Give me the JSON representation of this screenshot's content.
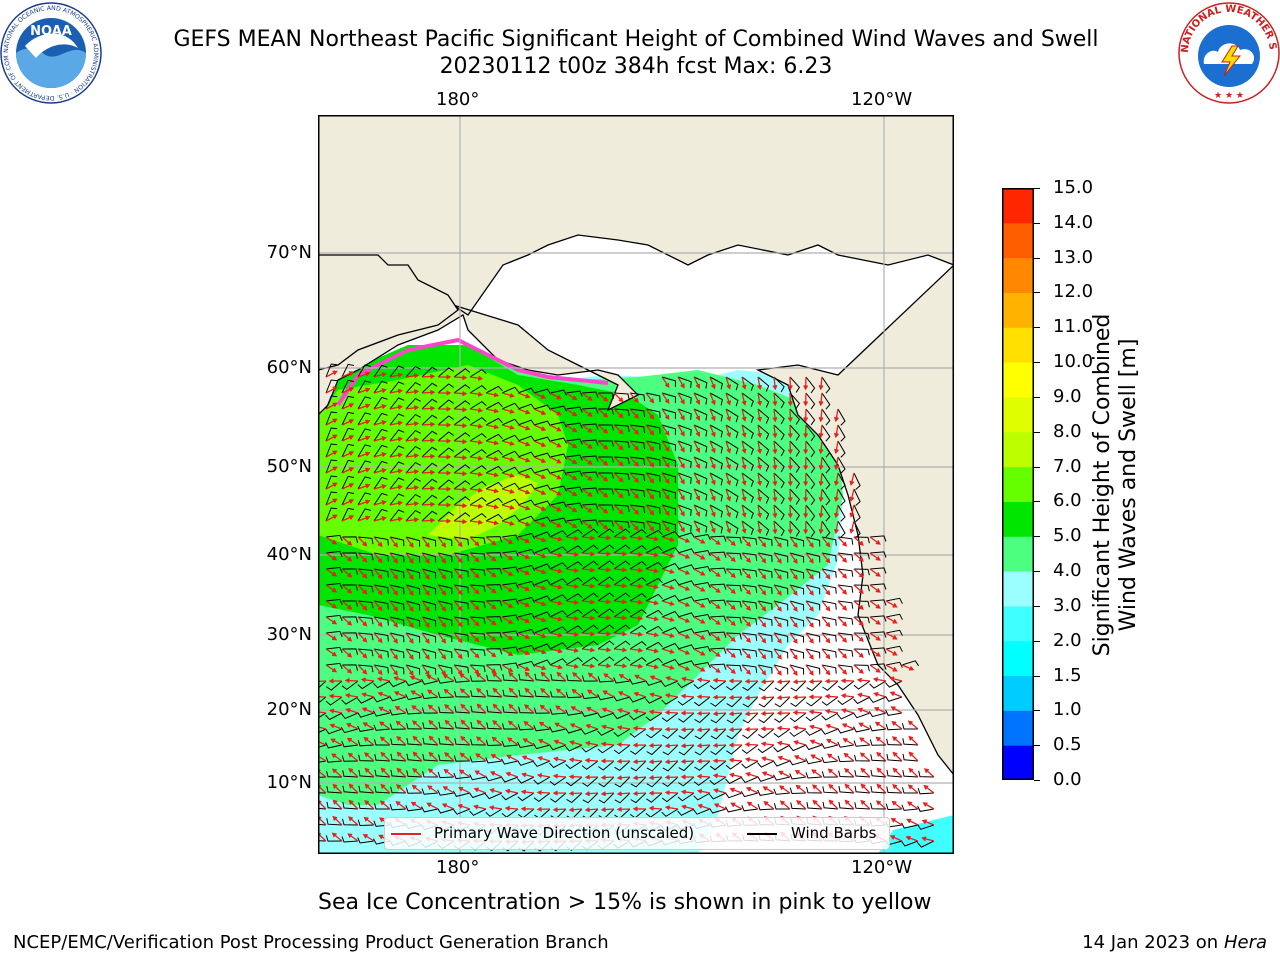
{
  "title_line1": "GEFS MEAN Northeast Pacific Significant Height of Combined Wind Waves and Swell",
  "title_line2": "20230112 t00z 384h fcst   Max: 6.23",
  "logos": {
    "left_text": "NOAA",
    "left_ring": "NATIONAL OCEANIC AND ATMOSPHERIC ADMINISTRATION · U.S. DEPARTMENT OF COMMERCE",
    "right_ring": "NATIONAL WEATHER SERVICE"
  },
  "axes": {
    "lon_labels": [
      "180°",
      "120°W"
    ],
    "lat_labels": [
      "70°N",
      "60°N",
      "50°N",
      "40°N",
      "30°N",
      "20°N",
      "10°N"
    ]
  },
  "legend": {
    "items": [
      {
        "label": "Primary Wave Direction (unscaled)",
        "color": "#e8201e"
      },
      {
        "label": "Wind Barbs",
        "color": "#000000"
      }
    ]
  },
  "colorbar": {
    "title_line1": "Significant Height of Combined",
    "title_line2": "Wind Waves and Swell [m]",
    "ticks": [
      "0.0",
      "0.5",
      "1.0",
      "1.5",
      "2.0",
      "3.0",
      "4.0",
      "5.0",
      "6.0",
      "7.0",
      "8.0",
      "9.0",
      "10.0",
      "11.0",
      "12.0",
      "13.0",
      "14.0",
      "15.0"
    ],
    "colors": [
      "#0000ff",
      "#0073ff",
      "#00ccff",
      "#00ffff",
      "#40ffff",
      "#9cffff",
      "#4dff80",
      "#00e600",
      "#66ff00",
      "#bbff00",
      "#dfff00",
      "#ffff00",
      "#ffe000",
      "#ffb200",
      "#ff8800",
      "#ff5e00",
      "#ff2600"
    ]
  },
  "map": {
    "colors": {
      "land": "#efecdc",
      "coast": "#000000",
      "grid": "#b0b0b0",
      "arrow": "#e8201e",
      "barb": "#000000",
      "ice": "#ff44cc"
    }
  },
  "subtitle": "Sea Ice Concentration > 15% is shown in pink to yellow",
  "footer": {
    "left": "NCEP/EMC/Verification Post Processing Product Generation Branch",
    "right_date": "14 Jan 2023 on",
    "right_machine": "Hera"
  }
}
